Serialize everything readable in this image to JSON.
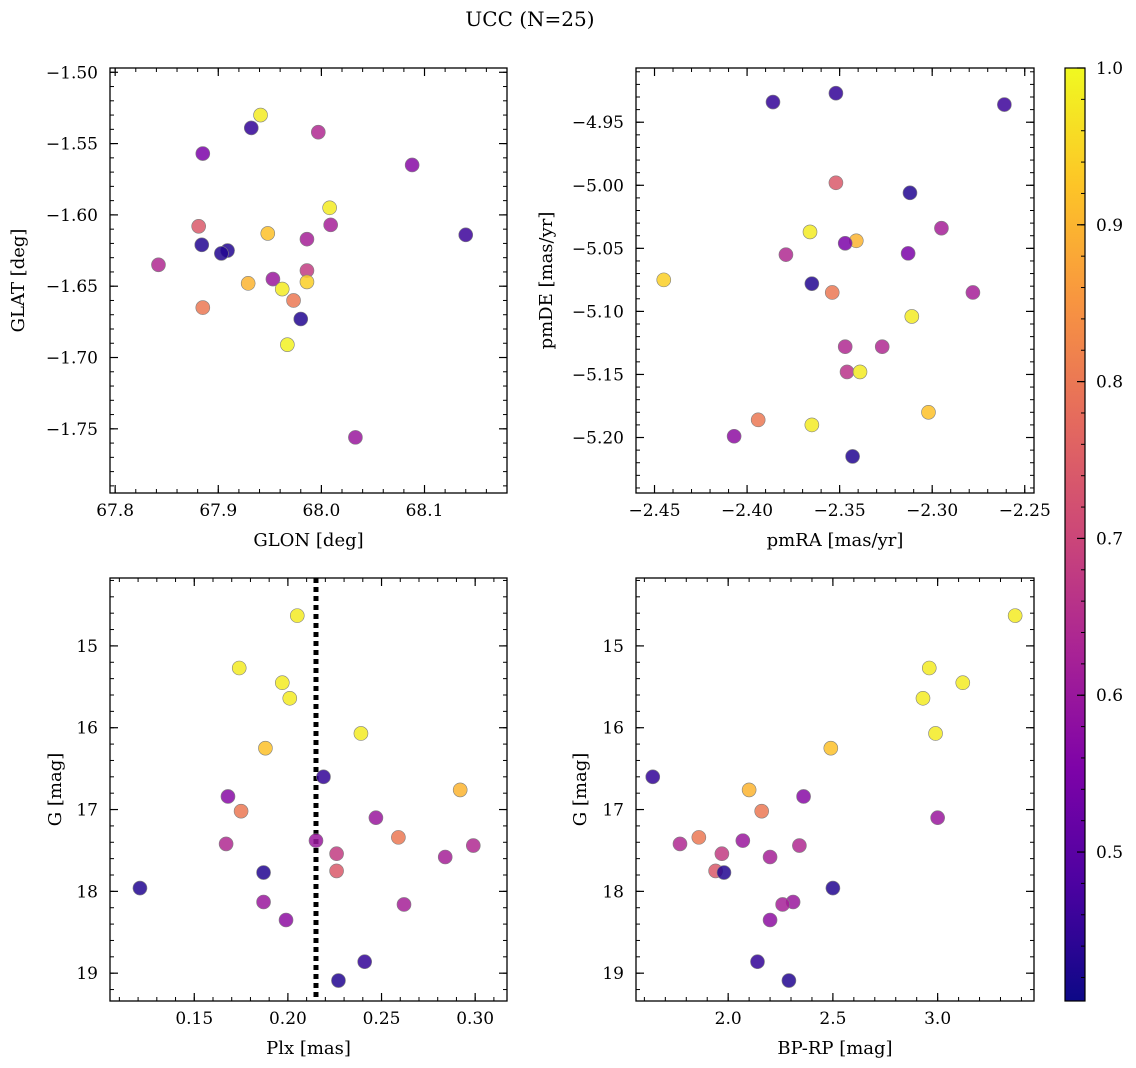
{
  "title": "UCC (N=25)",
  "colorbar": {
    "min": 0.405,
    "max": 1.0,
    "ticks": [
      0.5,
      0.6,
      0.7,
      0.8,
      0.9,
      1.0
    ],
    "tick_labels": [
      "0.5",
      "0.6",
      "0.7",
      "0.8",
      "0.9",
      "1.0"
    ],
    "colormap": "plasma"
  },
  "chart_data": [
    {
      "type": "scatter",
      "xlabel": "GLON [deg]",
      "ylabel": "GLAT [deg]",
      "xlim": [
        67.795,
        68.18
      ],
      "ylim": [
        -1.795,
        -1.497
      ],
      "y_inverted": false,
      "xticks": [
        67.8,
        67.9,
        68.0,
        68.1
      ],
      "xtick_labels": [
        "67.8",
        "67.9",
        "68.0",
        "68.1"
      ],
      "yticks": [
        -1.75,
        -1.7,
        -1.65,
        -1.6,
        -1.55,
        -1.5
      ],
      "ytick_labels": [
        "−1.75",
        "−1.70",
        "−1.65",
        "−1.60",
        "−1.55",
        "−1.50"
      ],
      "points": [
        {
          "x": 67.941,
          "y": -1.53,
          "c": 0.98
        },
        {
          "x": 67.932,
          "y": -1.539,
          "c": 0.45
        },
        {
          "x": 67.997,
          "y": -1.542,
          "c": 0.64
        },
        {
          "x": 67.885,
          "y": -1.557,
          "c": 0.55
        },
        {
          "x": 68.088,
          "y": -1.565,
          "c": 0.57
        },
        {
          "x": 68.008,
          "y": -1.595,
          "c": 0.98
        },
        {
          "x": 67.881,
          "y": -1.608,
          "c": 0.74
        },
        {
          "x": 68.009,
          "y": -1.607,
          "c": 0.62
        },
        {
          "x": 67.948,
          "y": -1.613,
          "c": 0.92
        },
        {
          "x": 68.14,
          "y": -1.614,
          "c": 0.46
        },
        {
          "x": 67.986,
          "y": -1.617,
          "c": 0.62
        },
        {
          "x": 67.884,
          "y": -1.621,
          "c": 0.43
        },
        {
          "x": 67.909,
          "y": -1.625,
          "c": 0.43
        },
        {
          "x": 67.903,
          "y": -1.627,
          "c": 0.43
        },
        {
          "x": 67.842,
          "y": -1.635,
          "c": 0.64
        },
        {
          "x": 67.986,
          "y": -1.639,
          "c": 0.68
        },
        {
          "x": 67.953,
          "y": -1.645,
          "c": 0.6
        },
        {
          "x": 67.986,
          "y": -1.647,
          "c": 0.94
        },
        {
          "x": 67.929,
          "y": -1.648,
          "c": 0.9
        },
        {
          "x": 67.962,
          "y": -1.652,
          "c": 0.98
        },
        {
          "x": 67.973,
          "y": -1.66,
          "c": 0.8
        },
        {
          "x": 67.885,
          "y": -1.665,
          "c": 0.8
        },
        {
          "x": 67.98,
          "y": -1.673,
          "c": 0.43
        },
        {
          "x": 67.967,
          "y": -1.691,
          "c": 0.99
        },
        {
          "x": 68.033,
          "y": -1.756,
          "c": 0.6
        }
      ]
    },
    {
      "type": "scatter",
      "xlabel": "pmRA [mas/yr]",
      "ylabel": "pmDE [mas/yr]",
      "xlim": [
        -2.46,
        -2.245
      ],
      "ylim": [
        -5.244,
        -4.907
      ],
      "y_inverted": false,
      "xticks": [
        -2.45,
        -2.4,
        -2.35,
        -2.3,
        -2.25
      ],
      "xtick_labels": [
        "−2.45",
        "−2.40",
        "−2.35",
        "−2.30",
        "−2.25"
      ],
      "yticks": [
        -5.2,
        -5.15,
        -5.1,
        -5.05,
        -5.0,
        -4.95
      ],
      "ytick_labels": [
        "−5.20",
        "−5.15",
        "−5.10",
        "−5.05",
        "−5.00",
        "−4.95"
      ],
      "points": [
        {
          "x": -2.352,
          "y": -4.927,
          "c": 0.45
        },
        {
          "x": -2.386,
          "y": -4.934,
          "c": 0.45
        },
        {
          "x": -2.261,
          "y": -4.936,
          "c": 0.46
        },
        {
          "x": -2.352,
          "y": -4.998,
          "c": 0.74
        },
        {
          "x": -2.312,
          "y": -5.006,
          "c": 0.43
        },
        {
          "x": -2.295,
          "y": -5.034,
          "c": 0.62
        },
        {
          "x": -2.366,
          "y": -5.037,
          "c": 0.98
        },
        {
          "x": -2.341,
          "y": -5.044,
          "c": 0.9
        },
        {
          "x": -2.347,
          "y": -5.046,
          "c": 0.55
        },
        {
          "x": -2.313,
          "y": -5.054,
          "c": 0.55
        },
        {
          "x": -2.379,
          "y": -5.055,
          "c": 0.64
        },
        {
          "x": -2.445,
          "y": -5.075,
          "c": 0.94
        },
        {
          "x": -2.365,
          "y": -5.078,
          "c": 0.43
        },
        {
          "x": -2.354,
          "y": -5.085,
          "c": 0.8
        },
        {
          "x": -2.278,
          "y": -5.085,
          "c": 0.62
        },
        {
          "x": -2.311,
          "y": -5.104,
          "c": 0.98
        },
        {
          "x": -2.347,
          "y": -5.128,
          "c": 0.64
        },
        {
          "x": -2.327,
          "y": -5.128,
          "c": 0.64
        },
        {
          "x": -2.346,
          "y": -5.148,
          "c": 0.66
        },
        {
          "x": -2.339,
          "y": -5.148,
          "c": 0.98
        },
        {
          "x": -2.302,
          "y": -5.18,
          "c": 0.92
        },
        {
          "x": -2.394,
          "y": -5.186,
          "c": 0.8
        },
        {
          "x": -2.365,
          "y": -5.19,
          "c": 0.98
        },
        {
          "x": -2.407,
          "y": -5.199,
          "c": 0.58
        },
        {
          "x": -2.343,
          "y": -5.215,
          "c": 0.43
        }
      ]
    },
    {
      "type": "scatter",
      "xlabel": "Plx [mas]",
      "ylabel": "G [mag]",
      "xlim": [
        0.105,
        0.317
      ],
      "ylim": [
        19.34,
        14.17
      ],
      "y_inverted": true,
      "xticks": [
        0.15,
        0.2,
        0.25,
        0.3
      ],
      "xtick_labels": [
        "0.15",
        "0.20",
        "0.25",
        "0.30"
      ],
      "yticks": [
        15,
        16,
        17,
        18,
        19
      ],
      "ytick_labels": [
        "15",
        "16",
        "17",
        "18",
        "19"
      ],
      "vline": {
        "x": 0.215,
        "style": "dotted"
      },
      "points": [
        {
          "x": 0.205,
          "y": 14.63,
          "c": 0.98
        },
        {
          "x": 0.174,
          "y": 15.27,
          "c": 0.98
        },
        {
          "x": 0.197,
          "y": 15.45,
          "c": 0.98
        },
        {
          "x": 0.201,
          "y": 15.64,
          "c": 0.98
        },
        {
          "x": 0.239,
          "y": 16.07,
          "c": 0.98
        },
        {
          "x": 0.188,
          "y": 16.25,
          "c": 0.92
        },
        {
          "x": 0.219,
          "y": 16.6,
          "c": 0.45
        },
        {
          "x": 0.292,
          "y": 16.76,
          "c": 0.9
        },
        {
          "x": 0.168,
          "y": 16.84,
          "c": 0.57
        },
        {
          "x": 0.175,
          "y": 17.02,
          "c": 0.8
        },
        {
          "x": 0.247,
          "y": 17.1,
          "c": 0.6
        },
        {
          "x": 0.259,
          "y": 17.34,
          "c": 0.8
        },
        {
          "x": 0.215,
          "y": 17.38,
          "c": 0.6
        },
        {
          "x": 0.167,
          "y": 17.42,
          "c": 0.64
        },
        {
          "x": 0.299,
          "y": 17.44,
          "c": 0.64
        },
        {
          "x": 0.226,
          "y": 17.54,
          "c": 0.68
        },
        {
          "x": 0.284,
          "y": 17.58,
          "c": 0.62
        },
        {
          "x": 0.226,
          "y": 17.75,
          "c": 0.74
        },
        {
          "x": 0.187,
          "y": 17.77,
          "c": 0.43
        },
        {
          "x": 0.121,
          "y": 17.96,
          "c": 0.43
        },
        {
          "x": 0.187,
          "y": 18.13,
          "c": 0.6
        },
        {
          "x": 0.262,
          "y": 18.16,
          "c": 0.62
        },
        {
          "x": 0.199,
          "y": 18.35,
          "c": 0.58
        },
        {
          "x": 0.241,
          "y": 18.86,
          "c": 0.45
        },
        {
          "x": 0.227,
          "y": 19.09,
          "c": 0.43
        }
      ]
    },
    {
      "type": "scatter",
      "xlabel": "BP-RP [mag]",
      "ylabel": "G [mag]",
      "xlim": [
        1.56,
        3.46
      ],
      "ylim": [
        19.34,
        14.17
      ],
      "y_inverted": true,
      "xticks": [
        2.0,
        2.5,
        3.0
      ],
      "xtick_labels": [
        "2.0",
        "2.5",
        "3.0"
      ],
      "yticks": [
        15,
        16,
        17,
        18,
        19
      ],
      "ytick_labels": [
        "15",
        "16",
        "17",
        "18",
        "19"
      ],
      "points": [
        {
          "x": 3.37,
          "y": 14.63,
          "c": 0.98
        },
        {
          "x": 2.96,
          "y": 15.27,
          "c": 0.98
        },
        {
          "x": 3.12,
          "y": 15.45,
          "c": 0.98
        },
        {
          "x": 2.93,
          "y": 15.64,
          "c": 0.98
        },
        {
          "x": 2.99,
          "y": 16.07,
          "c": 0.98
        },
        {
          "x": 2.49,
          "y": 16.25,
          "c": 0.92
        },
        {
          "x": 1.64,
          "y": 16.6,
          "c": 0.45
        },
        {
          "x": 2.1,
          "y": 16.76,
          "c": 0.9
        },
        {
          "x": 2.36,
          "y": 16.84,
          "c": 0.57
        },
        {
          "x": 2.16,
          "y": 17.02,
          "c": 0.8
        },
        {
          "x": 3.0,
          "y": 17.1,
          "c": 0.6
        },
        {
          "x": 1.86,
          "y": 17.34,
          "c": 0.8
        },
        {
          "x": 2.07,
          "y": 17.38,
          "c": 0.6
        },
        {
          "x": 1.77,
          "y": 17.42,
          "c": 0.64
        },
        {
          "x": 2.34,
          "y": 17.44,
          "c": 0.64
        },
        {
          "x": 1.97,
          "y": 17.54,
          "c": 0.68
        },
        {
          "x": 2.2,
          "y": 17.58,
          "c": 0.62
        },
        {
          "x": 1.94,
          "y": 17.75,
          "c": 0.74
        },
        {
          "x": 1.98,
          "y": 17.77,
          "c": 0.43
        },
        {
          "x": 2.5,
          "y": 17.96,
          "c": 0.43
        },
        {
          "x": 2.31,
          "y": 18.13,
          "c": 0.6
        },
        {
          "x": 2.26,
          "y": 18.16,
          "c": 0.62
        },
        {
          "x": 2.2,
          "y": 18.35,
          "c": 0.58
        },
        {
          "x": 2.14,
          "y": 18.86,
          "c": 0.45
        },
        {
          "x": 2.29,
          "y": 19.09,
          "c": 0.43
        }
      ]
    }
  ]
}
